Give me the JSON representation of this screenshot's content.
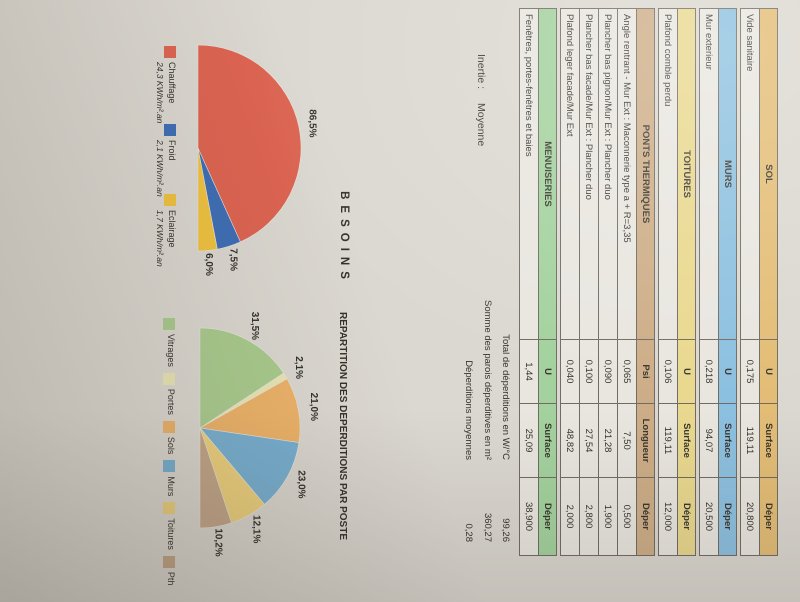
{
  "tables": [
    {
      "title": "SOL",
      "color": "#e3bd76",
      "cols": [
        "U",
        "Surface",
        "Déper"
      ],
      "rows": [
        {
          "label": "Vide sanitaire",
          "values": [
            "0,175",
            "119,11",
            "20,800"
          ]
        }
      ]
    },
    {
      "title": "MURS",
      "color": "#8cc0e0",
      "cols": [
        "U",
        "Surface",
        "Déper"
      ],
      "rows": [
        {
          "label": "Mur exterieur",
          "values": [
            "0,218",
            "94,07",
            "20,500"
          ]
        }
      ]
    },
    {
      "title": "TOITURES",
      "color": "#e9d88e",
      "cols": [
        "U",
        "Surface",
        "Déper"
      ],
      "rows": [
        {
          "label": "Plafond comble perdu",
          "values": [
            "0,106",
            "119,11",
            "12,000"
          ]
        }
      ]
    },
    {
      "title": "PONTS THERMIQUES",
      "color": "#cdad87",
      "cols": [
        "Psi",
        "Longueur",
        "Déper"
      ],
      "rows": [
        {
          "label": "Angle rentrant - Mur Ext : Maconnerie type a + R=3,35",
          "values": [
            "0,065",
            "7,50",
            "0,500"
          ]
        },
        {
          "label": "Plancher bas pignon/Mur Ext : Plancher duo",
          "values": [
            "0,090",
            "21,28",
            "1,900"
          ]
        },
        {
          "label": "Plancher bas facade/Mur Ext : Plancher duo",
          "values": [
            "0,100",
            "27,54",
            "2,800"
          ]
        },
        {
          "label": "Plafond leger facade/Mur Ext",
          "values": [
            "0,040",
            "48,82",
            "2,000"
          ]
        }
      ]
    },
    {
      "title": "MENUISERIES",
      "color": "#a3d29e",
      "cols": [
        "U",
        "Surface",
        "Déper"
      ],
      "rows": [
        {
          "label": "Fenêtres, portes-fenêtres et baies",
          "values": [
            "1,44",
            "25,09",
            "38,900"
          ]
        }
      ]
    }
  ],
  "summary": {
    "inertie_label": "Inertie :",
    "inertie_value": "Moyenne",
    "totals": [
      {
        "label": "Total de déperditions en W/°C",
        "value": "99,26"
      },
      {
        "label": "Somme des parois déperditives en m²",
        "value": "360,27"
      },
      {
        "label": "Déperditions moyennes",
        "value": "0,28"
      }
    ]
  },
  "chart_data": [
    {
      "type": "pie",
      "variant": "half",
      "title": "BESOINS",
      "legend_position": "bottom",
      "slices": [
        {
          "label": "Chauffage",
          "sublabel": "24,3 KWh/m².an",
          "pct": 86.5,
          "pct_label": "86,5%",
          "color": "#dd6351"
        },
        {
          "label": "Froid",
          "sublabel": "2,1 KWh/m².an",
          "pct": 7.5,
          "pct_label": "7,5%",
          "color": "#3e6db6"
        },
        {
          "label": "Eclairage",
          "sublabel": "1,7 KWh/m².an",
          "pct": 6.0,
          "pct_label": "6,0%",
          "color": "#efc23f"
        }
      ]
    },
    {
      "type": "pie",
      "variant": "half",
      "title": "REPARTITION DES DEPERDITIONS PAR POSTE",
      "legend_position": "bottom",
      "slices": [
        {
          "label": "Vitrages",
          "pct": 31.5,
          "pct_label": "31,5%",
          "color": "#a9cb8e"
        },
        {
          "label": "Portes",
          "pct": 2.1,
          "pct_label": "2,1%",
          "color": "#e9e6b4"
        },
        {
          "label": "Sols",
          "pct": 21.0,
          "pct_label": "21,0%",
          "color": "#edb369"
        },
        {
          "label": "Murs",
          "pct": 23.0,
          "pct_label": "23,0%",
          "color": "#77b0d2"
        },
        {
          "label": "Toitures",
          "pct": 12.1,
          "pct_label": "12,1%",
          "color": "#eed27e"
        },
        {
          "label": "Pth",
          "pct": 10.2,
          "pct_label": "10,2%",
          "color": "#c3a689"
        }
      ]
    }
  ]
}
